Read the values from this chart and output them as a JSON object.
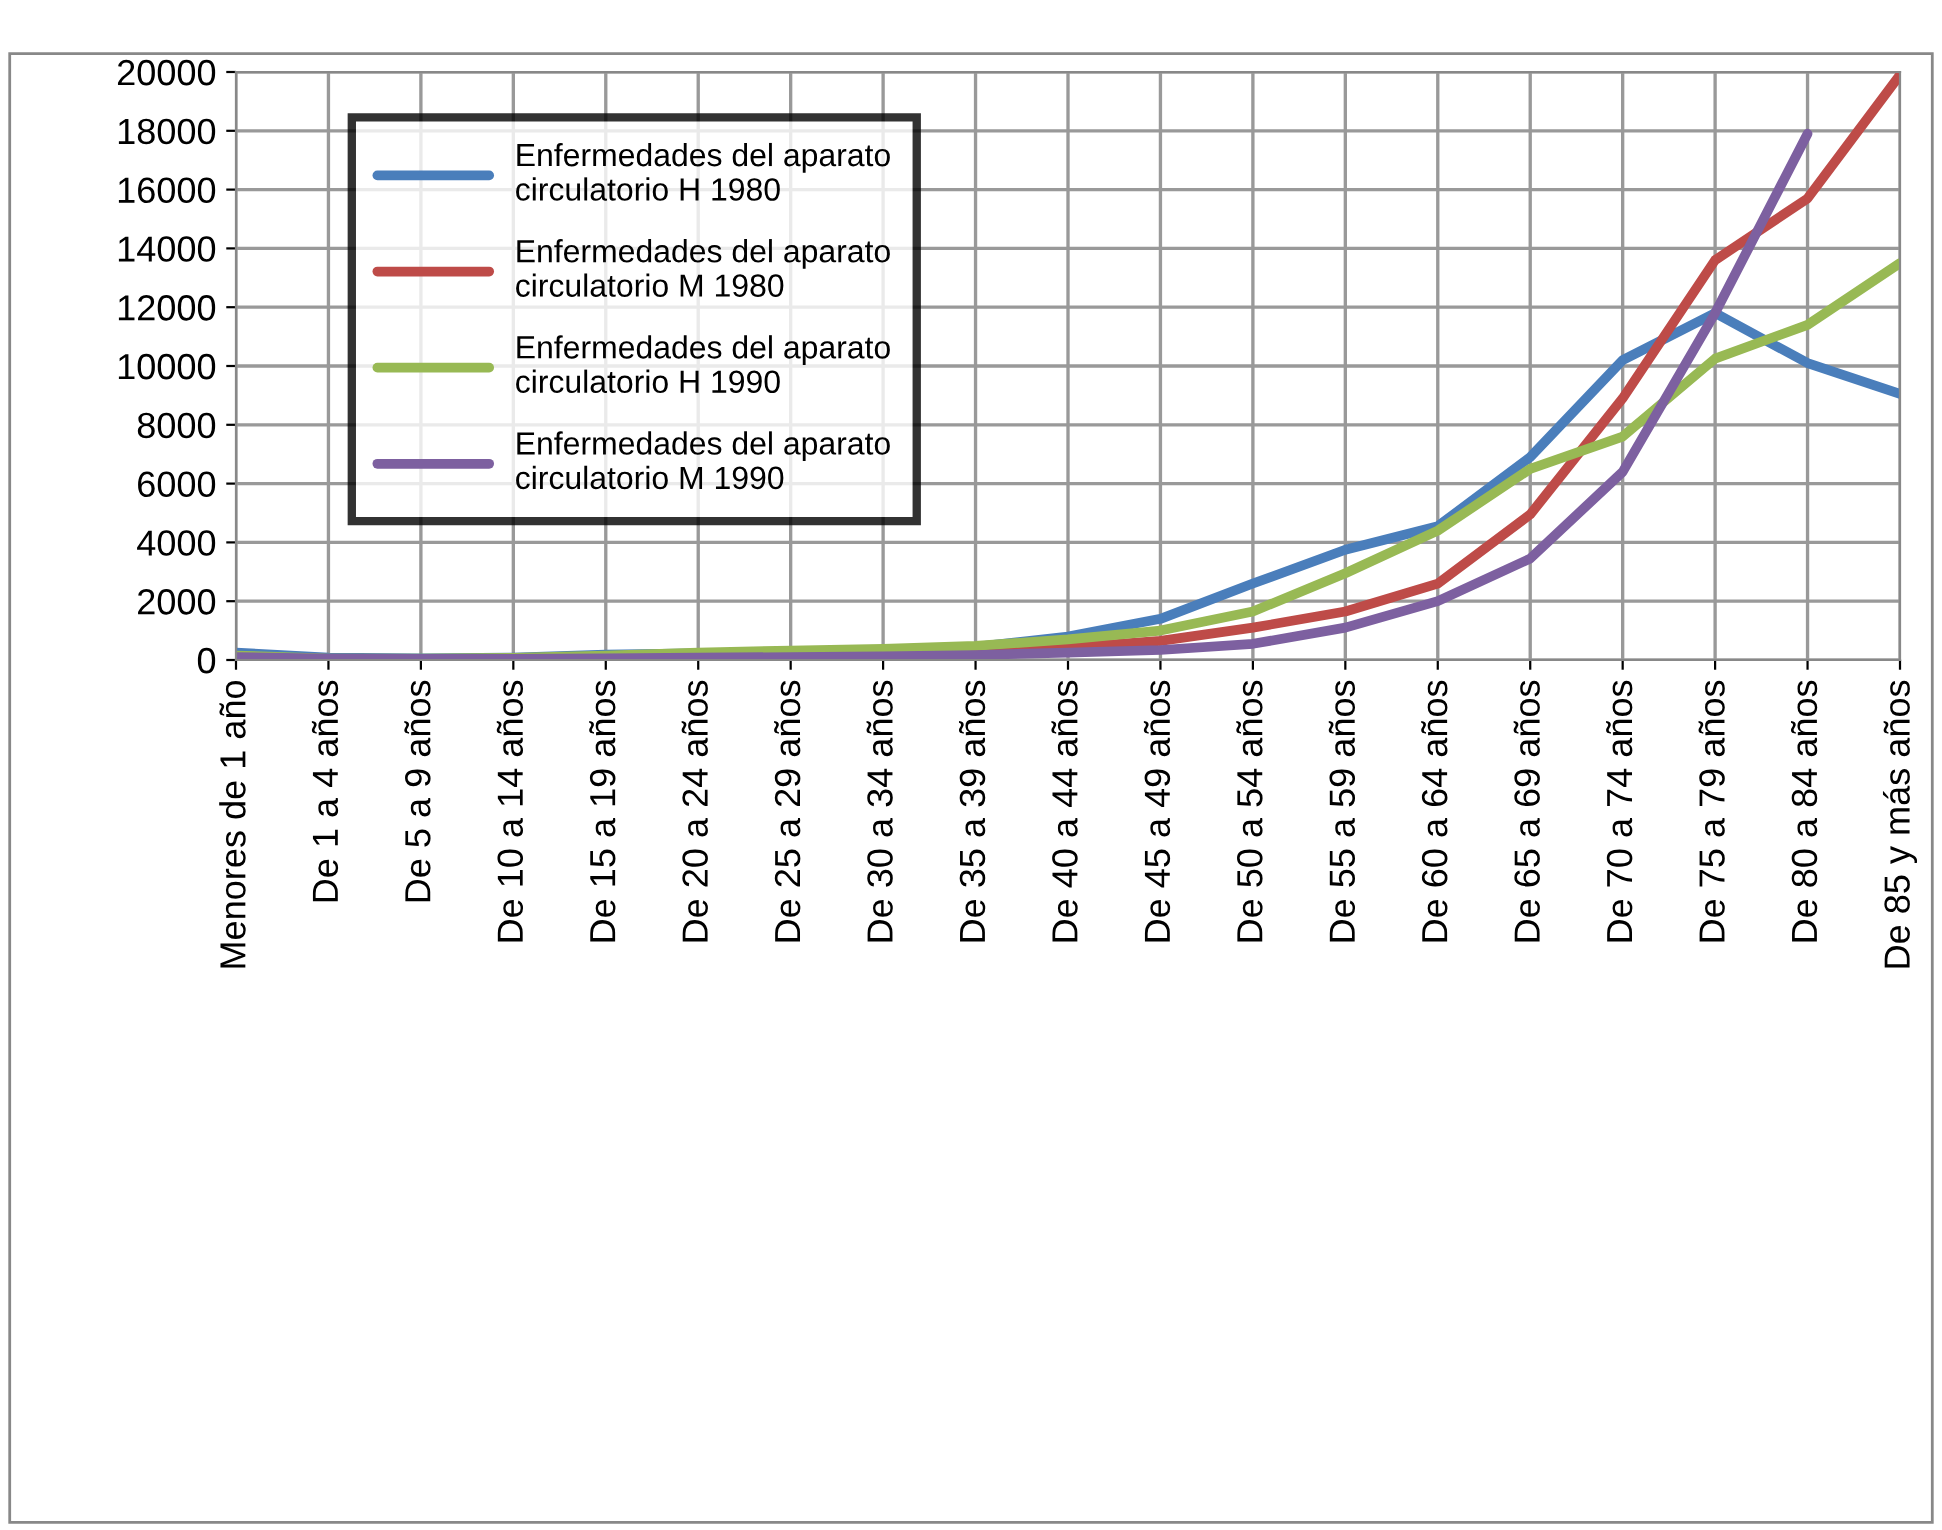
{
  "chart_data": {
    "type": "line",
    "categories": [
      "Menores de 1 año",
      "De 1 a 4 años",
      "De 5 a 9 años",
      "De 10 a 14 años",
      "De 15 a 19 años",
      "De 20 a 24 años",
      "De 25 a 29 años",
      "De 30 a 34 años",
      "De 35 a 39 años",
      "De 40 a 44 años",
      "De 45 a 49 años",
      "De 50 a 54 años",
      "De 55 a 59 años",
      "De 60 a 64 años",
      "De 65 a 69 años",
      "De 70 a 74 años",
      "De 75 a 79 años",
      "De 80 a 84 años",
      "De 85 y más años"
    ],
    "series": [
      {
        "name": "Enfermedades del aparato circulatorio H 1980",
        "color": "#4a7ebb",
        "values": [
          250,
          80,
          60,
          80,
          180,
          230,
          260,
          300,
          450,
          800,
          1400,
          2600,
          3750,
          4550,
          6900,
          10200,
          11800,
          10100,
          9050
        ]
      },
      {
        "name": "Enfermedades del aparato circulatorio M 1980",
        "color": "#be4b48",
        "values": [
          null,
          null,
          null,
          null,
          null,
          null,
          null,
          170,
          280,
          420,
          650,
          1100,
          1650,
          2600,
          4950,
          8900,
          13600,
          15700,
          19900
        ]
      },
      {
        "name": "Enfermedades del aparato circulatorio H 1990",
        "color": "#98b954",
        "values": [
          150,
          50,
          50,
          70,
          150,
          250,
          320,
          380,
          480,
          700,
          1000,
          1650,
          2950,
          4400,
          6500,
          7600,
          10250,
          11400,
          13500
        ]
      },
      {
        "name": "Enfermedades del aparato circulatorio M 1990",
        "color": "#7d60a0",
        "values": [
          100,
          50,
          40,
          40,
          60,
          80,
          100,
          120,
          170,
          250,
          340,
          550,
          1100,
          2000,
          3450,
          6400,
          11800,
          17900,
          null
        ]
      }
    ],
    "ylim": [
      0,
      20000
    ],
    "yticks": [
      0,
      2000,
      4000,
      6000,
      8000,
      10000,
      12000,
      14000,
      16000,
      18000,
      20000
    ],
    "grid": true,
    "legend": "top left",
    "marker": "none",
    "line_style": "solid"
  }
}
